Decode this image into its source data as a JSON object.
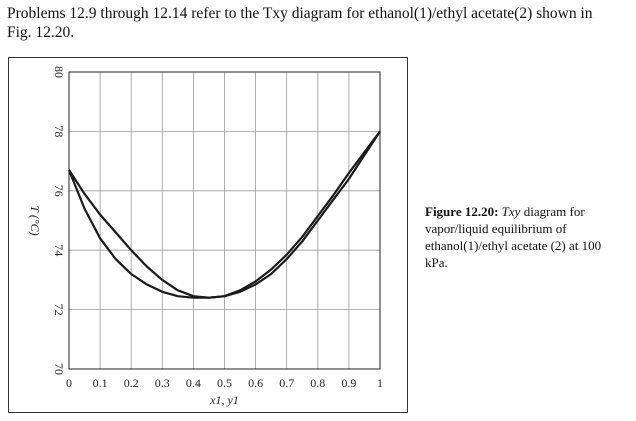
{
  "intro": {
    "line1": "Problems 12.9 through 12.14 refer to the Txy diagram for ethanol(1)/ethyl acetate(2) shown in",
    "line2": "Fig. 12.20."
  },
  "caption": {
    "label": "Figure 12.20:",
    "title_italic": "Txy",
    "text": "diagram for vapor/liquid equilibrium of ethanol(1)/ethyl acetate (2) at 100 kPa."
  },
  "chart_data": {
    "type": "line",
    "title": "",
    "xlabel": "x1, y1",
    "ylabel": "T (°C)",
    "xlim": [
      0,
      1
    ],
    "ylim": [
      70,
      80
    ],
    "xticks": [
      "0",
      "0.1",
      "0.2",
      "0.3",
      "0.4",
      "0.5",
      "0.6",
      "0.7",
      "0.8",
      "0.9",
      "1"
    ],
    "yticks": [
      "70",
      "72",
      "74",
      "76",
      "78",
      "80"
    ],
    "grid": true,
    "series": [
      {
        "x": [
          0,
          0.05,
          0.1,
          0.15,
          0.2,
          0.25,
          0.3,
          0.35,
          0.4,
          0.45,
          0.5,
          0.55,
          0.6,
          0.65,
          0.7,
          0.75,
          0.8,
          0.85,
          0.9,
          0.95,
          1.0
        ],
        "y": [
          76.7,
          75.4,
          74.4,
          73.7,
          73.2,
          72.85,
          72.6,
          72.45,
          72.4,
          72.4,
          72.45,
          72.6,
          72.85,
          73.2,
          73.7,
          74.3,
          75.0,
          75.7,
          76.4,
          77.2,
          78.0
        ]
      },
      {
        "x": [
          0,
          0.05,
          0.1,
          0.15,
          0.2,
          0.25,
          0.3,
          0.35,
          0.4,
          0.45,
          0.5,
          0.55,
          0.6,
          0.65,
          0.7,
          0.75,
          0.8,
          0.85,
          0.9,
          0.95,
          1.0
        ],
        "y": [
          76.7,
          75.9,
          75.2,
          74.6,
          74.0,
          73.45,
          73.0,
          72.65,
          72.45,
          72.4,
          72.45,
          72.65,
          72.95,
          73.35,
          73.85,
          74.45,
          75.15,
          75.85,
          76.6,
          77.3,
          78.0
        ]
      }
    ]
  }
}
